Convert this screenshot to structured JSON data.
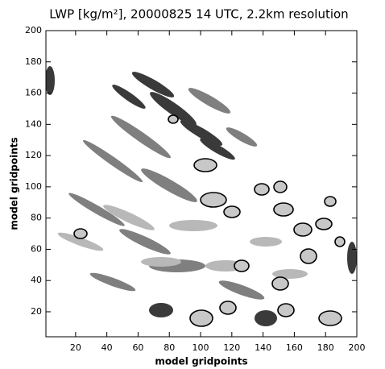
{
  "chart_data": {
    "type": "field",
    "title": "LWP [kg/m²], 20000825 14 UTC, 2.2km resolution",
    "x_label": "model gridpoints",
    "y_label": "model gridpoints",
    "xlim": [
      1,
      200
    ],
    "ylim": [
      4,
      200
    ],
    "xticks": [
      20,
      40,
      60,
      80,
      100,
      120,
      140,
      160,
      180,
      200
    ],
    "yticks": [
      20,
      40,
      60,
      80,
      100,
      120,
      140,
      160,
      180,
      200
    ]
  }
}
